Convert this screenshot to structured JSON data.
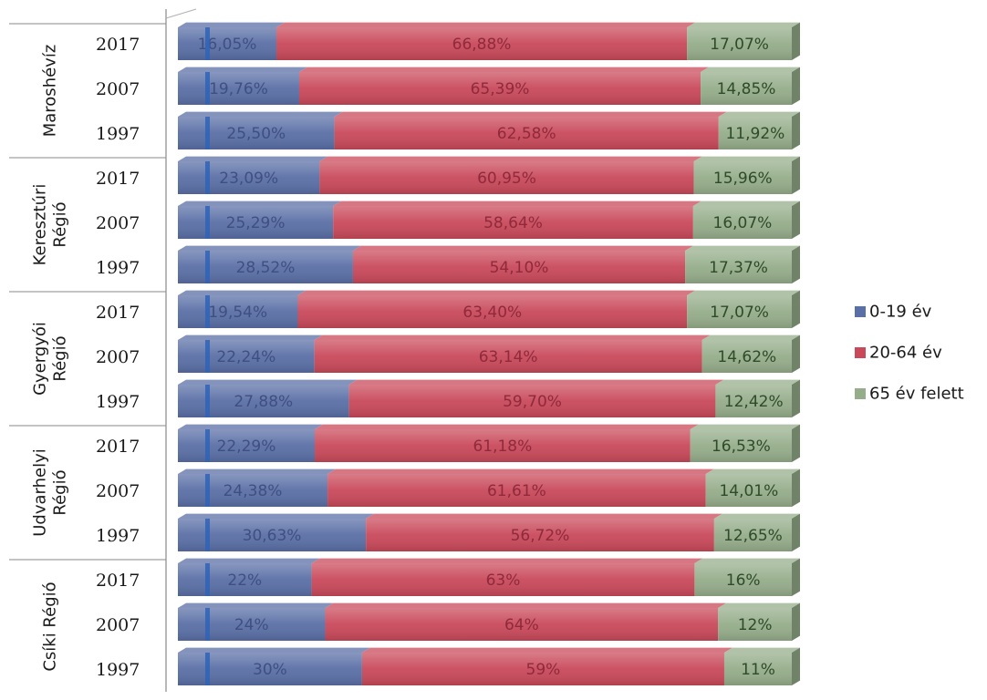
{
  "chart_data": {
    "type": "bar",
    "stacked": true,
    "orientation": "horizontal",
    "percent_stacked": true,
    "xlim": [
      0,
      100
    ],
    "legend_position": "right",
    "series": [
      {
        "name": "0-19 év",
        "color": "#5a6fa6"
      },
      {
        "name": "20-64 év",
        "color": "#c9495a"
      },
      {
        "name": "65 év felett",
        "color": "#95ad8a"
      }
    ],
    "groups": [
      {
        "label_lines": [
          "Maroshévíz"
        ],
        "rows": [
          {
            "year": "2017",
            "values": [
              16.05,
              66.88,
              17.07
            ],
            "labels": [
              "16,05%",
              "66,88%",
              "17,07%"
            ]
          },
          {
            "year": "2007",
            "values": [
              19.76,
              65.39,
              14.85
            ],
            "labels": [
              "19,76%",
              "65,39%",
              "14,85%"
            ]
          },
          {
            "year": "1997",
            "values": [
              25.5,
              62.58,
              11.92
            ],
            "labels": [
              "25,50%",
              "62,58%",
              "11,92%"
            ]
          }
        ]
      },
      {
        "label_lines": [
          "Keresztúri",
          "Régió"
        ],
        "rows": [
          {
            "year": "2017",
            "values": [
              23.09,
              60.95,
              15.96
            ],
            "labels": [
              "23,09%",
              "60,95%",
              "15,96%"
            ]
          },
          {
            "year": "2007",
            "values": [
              25.29,
              58.64,
              16.07
            ],
            "labels": [
              "25,29%",
              "58,64%",
              "16,07%"
            ]
          },
          {
            "year": "1997",
            "values": [
              28.52,
              54.1,
              17.37
            ],
            "labels": [
              "28,52%",
              "54,10%",
              "17,37%"
            ]
          }
        ]
      },
      {
        "label_lines": [
          "Gyergyói",
          "Régió"
        ],
        "rows": [
          {
            "year": "2017",
            "values": [
              19.54,
              63.4,
              17.07
            ],
            "labels": [
              "19,54%",
              "63,40%",
              "17,07%"
            ]
          },
          {
            "year": "2007",
            "values": [
              22.24,
              63.14,
              14.62
            ],
            "labels": [
              "22,24%",
              "63,14%",
              "14,62%"
            ]
          },
          {
            "year": "1997",
            "values": [
              27.88,
              59.7,
              12.42
            ],
            "labels": [
              "27,88%",
              "59,70%",
              "12,42%"
            ]
          }
        ]
      },
      {
        "label_lines": [
          "Udvarhelyi",
          "Régió"
        ],
        "rows": [
          {
            "year": "2017",
            "values": [
              22.29,
              61.18,
              16.53
            ],
            "labels": [
              "22,29%",
              "61,18%",
              "16,53%"
            ]
          },
          {
            "year": "2007",
            "values": [
              24.38,
              61.61,
              14.01
            ],
            "labels": [
              "24,38%",
              "61,61%",
              "14,01%"
            ]
          },
          {
            "year": "1997",
            "values": [
              30.63,
              56.72,
              12.65
            ],
            "labels": [
              "30,63%",
              "56,72%",
              "12,65%"
            ]
          }
        ]
      },
      {
        "label_lines": [
          "Csíki Régió"
        ],
        "rows": [
          {
            "year": "2017",
            "values": [
              22,
              63,
              16
            ],
            "labels": [
              "22%",
              "63%",
              "16%"
            ]
          },
          {
            "year": "2007",
            "values": [
              24,
              64,
              12
            ],
            "labels": [
              "24%",
              "64%",
              "12%"
            ]
          },
          {
            "year": "1997",
            "values": [
              30,
              59,
              11
            ],
            "labels": [
              "30%",
              "59%",
              "11%"
            ]
          }
        ]
      }
    ]
  }
}
